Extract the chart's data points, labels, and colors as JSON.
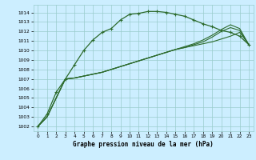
{
  "title": "Graphe pression niveau de la mer (hPa)",
  "bg_color": "#cceeff",
  "grid_color": "#99cccc",
  "line_color": "#2d6b2d",
  "xlim": [
    -0.5,
    23.5
  ],
  "ylim": [
    1001.5,
    1014.8
  ],
  "yticks": [
    1002,
    1003,
    1004,
    1005,
    1006,
    1007,
    1008,
    1009,
    1010,
    1011,
    1012,
    1013,
    1014
  ],
  "xticks": [
    0,
    1,
    2,
    3,
    4,
    5,
    6,
    7,
    8,
    9,
    10,
    11,
    12,
    13,
    14,
    15,
    16,
    17,
    18,
    19,
    20,
    21,
    22,
    23
  ],
  "series": [
    {
      "x": [
        0,
        1,
        2,
        3,
        4,
        5,
        6,
        7,
        8,
        9,
        10,
        11,
        12,
        13,
        14,
        15,
        16,
        17,
        18,
        19,
        20,
        21,
        22,
        23
      ],
      "y": [
        1002.0,
        1003.3,
        1005.6,
        1007.0,
        1008.5,
        1010.0,
        1011.1,
        1011.9,
        1012.3,
        1013.2,
        1013.8,
        1013.9,
        1014.1,
        1014.1,
        1014.0,
        1013.8,
        1013.6,
        1013.2,
        1012.8,
        1012.5,
        1012.1,
        1011.9,
        1011.5,
        1010.6
      ],
      "marker": true,
      "lw": 0.9
    },
    {
      "x": [
        0,
        1,
        2,
        3,
        4,
        5,
        6,
        7,
        8,
        9,
        10,
        11,
        12,
        13,
        14,
        15,
        16,
        17,
        18,
        19,
        20,
        21,
        22,
        23
      ],
      "y": [
        1002.0,
        1003.0,
        1005.0,
        1007.0,
        1007.1,
        1007.3,
        1007.5,
        1007.7,
        1008.0,
        1008.3,
        1008.6,
        1008.9,
        1009.2,
        1009.5,
        1009.8,
        1010.1,
        1010.3,
        1010.5,
        1010.7,
        1010.9,
        1011.2,
        1011.5,
        1011.9,
        1010.6
      ],
      "marker": false,
      "lw": 0.8
    },
    {
      "x": [
        0,
        1,
        2,
        3,
        4,
        5,
        6,
        7,
        8,
        9,
        10,
        11,
        12,
        13,
        14,
        15,
        16,
        17,
        18,
        19,
        20,
        21,
        22,
        23
      ],
      "y": [
        1002.0,
        1003.0,
        1005.0,
        1007.0,
        1007.1,
        1007.3,
        1007.5,
        1007.7,
        1008.0,
        1008.3,
        1008.6,
        1008.9,
        1009.2,
        1009.5,
        1009.8,
        1010.1,
        1010.3,
        1010.6,
        1010.9,
        1011.4,
        1012.0,
        1012.4,
        1012.1,
        1010.6
      ],
      "marker": false,
      "lw": 0.8
    },
    {
      "x": [
        0,
        1,
        2,
        3,
        4,
        5,
        6,
        7,
        8,
        9,
        10,
        11,
        12,
        13,
        14,
        15,
        16,
        17,
        18,
        19,
        20,
        21,
        22,
        23
      ],
      "y": [
        1002.0,
        1003.0,
        1005.0,
        1007.0,
        1007.1,
        1007.3,
        1007.5,
        1007.7,
        1008.0,
        1008.3,
        1008.6,
        1008.9,
        1009.2,
        1009.5,
        1009.8,
        1010.1,
        1010.4,
        1010.7,
        1011.1,
        1011.6,
        1012.2,
        1012.7,
        1012.3,
        1010.6
      ],
      "marker": false,
      "lw": 0.8
    }
  ]
}
